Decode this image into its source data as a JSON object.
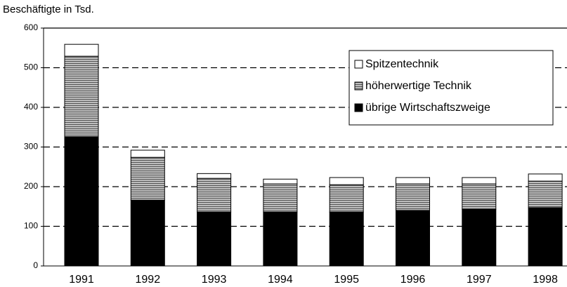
{
  "chart_data": {
    "type": "stacked_bar",
    "y_label": "Beschäftigte in Tsd.",
    "categories": [
      "1991",
      "1992",
      "1993",
      "1994",
      "1995",
      "1996",
      "1997",
      "1998"
    ],
    "series": [
      {
        "name": "übrige Wirtschaftszweige",
        "color": "#000000",
        "values": [
          326,
          166,
          136,
          136,
          136,
          140,
          143,
          147
        ]
      },
      {
        "name": "höherwertige Technik",
        "color": "#9a9a9a",
        "values": [
          203,
          108,
          85,
          71,
          69,
          67,
          64,
          67
        ]
      },
      {
        "name": "Spitzentechnik",
        "color": "#ffffff",
        "values": [
          30,
          18,
          12,
          12,
          18,
          16,
          16,
          18
        ]
      }
    ],
    "ylim": [
      0,
      600
    ],
    "yticks": [
      0,
      100,
      200,
      300,
      400,
      500,
      600
    ],
    "grid": true,
    "legend": "top-right"
  }
}
